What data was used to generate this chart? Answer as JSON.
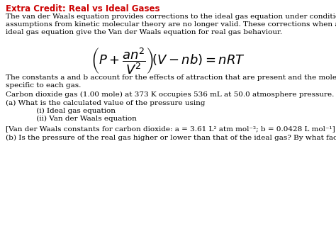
{
  "title": "Extra Credit: Real vs Ideal Gases",
  "title_color": "#cc0000",
  "background_color": "#ffffff",
  "para1": "The van der Waals equation provides corrections to the ideal gas equation under conditions when\nassumptions from kinetic molecular theory are no longer valid. These corrections when applied to the\nideal gas equation give the Van der Waals equation for real gas behaviour.",
  "para2": "The constants a and b account for the effects of attraction that are present and the molecule, and are\nspecific to each gas.",
  "para3": "Carbon dioxide gas (1.00 mole) at 373 K occupies 536 mL at 50.0 atmosphere pressure.",
  "para4": "(a) What is the calculated value of the pressure using",
  "para4i": "     (i) Ideal gas equation",
  "para4ii": "     (ii) Van der Waals equation",
  "para5": "[Van der Waals constants for carbon dioxide: a = 3.61 L² atm mol⁻²; b = 0.0428 L mol⁻¹]",
  "para6": "(b) Is the pressure of the real gas higher or lower than that of the ideal gas? By what factor?",
  "font_size": 7.5,
  "title_font_size": 8.5,
  "equation_font_size": 13
}
